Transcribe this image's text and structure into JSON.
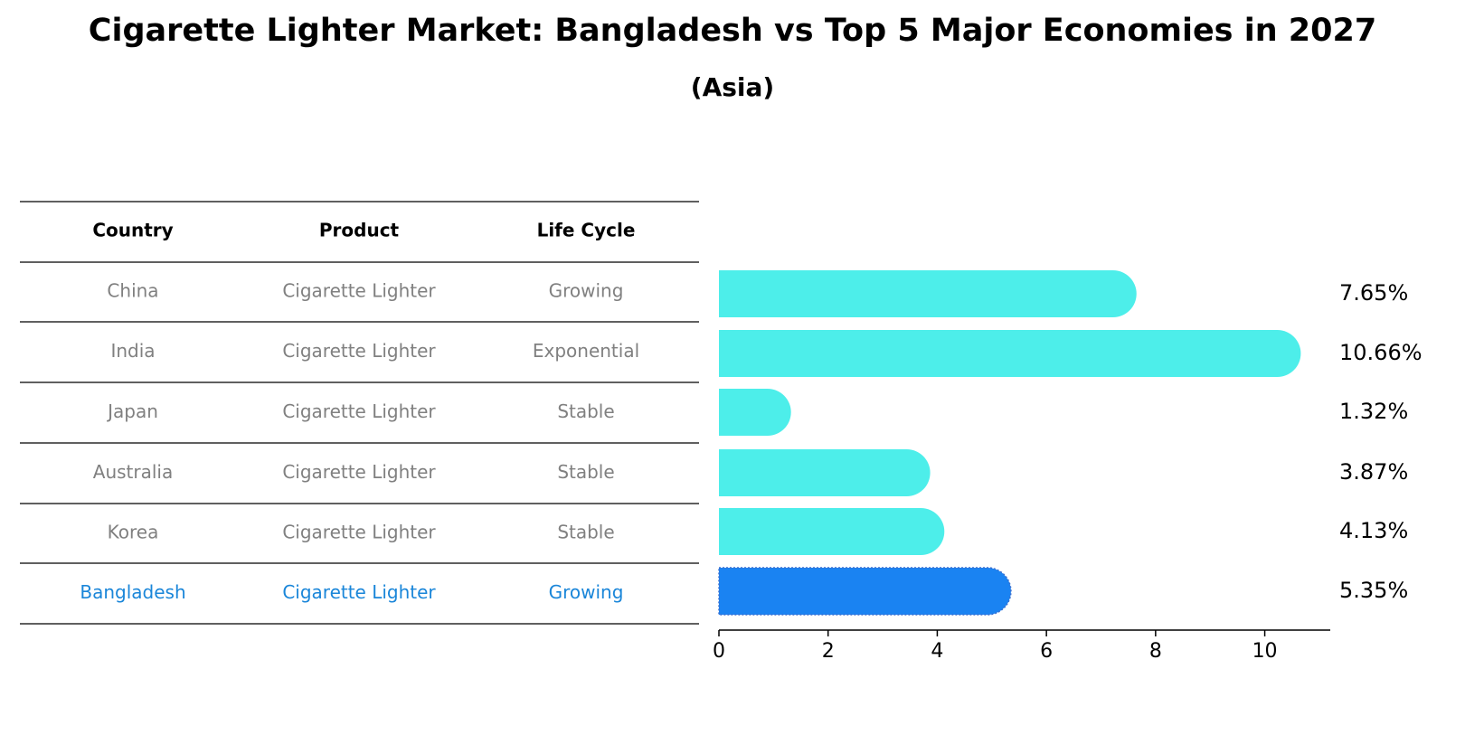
{
  "chart_data": {
    "type": "bar",
    "orientation": "horizontal",
    "title": "Cigarette Lighter Market: Bangladesh vs Top 5 Major Economies in 2027",
    "subtitle": "(Asia)",
    "table": {
      "headers": [
        "Country",
        "Product",
        "Life Cycle"
      ],
      "rows": [
        [
          "China",
          "Cigarette Lighter",
          "Growing"
        ],
        [
          "India",
          "Cigarette Lighter",
          "Exponential"
        ],
        [
          "Japan",
          "Cigarette Lighter",
          "Stable"
        ],
        [
          "Australia",
          "Cigarette Lighter",
          "Stable"
        ],
        [
          "Korea",
          "Cigarette Lighter",
          "Stable"
        ],
        [
          "Bangladesh",
          "Cigarette Lighter",
          "Growing"
        ]
      ],
      "highlight_row": 5
    },
    "categories": [
      "China",
      "India",
      "Japan",
      "Australia",
      "Korea",
      "Bangladesh"
    ],
    "values": [
      7.65,
      10.66,
      1.32,
      3.87,
      4.13,
      5.35
    ],
    "value_labels": [
      "7.65%",
      "10.66%",
      "1.32%",
      "3.87%",
      "4.13%",
      "5.35%"
    ],
    "xlim": [
      0,
      11.2
    ],
    "xticks": [
      0,
      2,
      4,
      6,
      8,
      10
    ],
    "xtick_labels": [
      "0",
      "2",
      "4",
      "6",
      "8",
      "10"
    ],
    "colors": {
      "bar": "#4deeea",
      "highlight": "#1a83f2",
      "highlight_text": "#1a86d9",
      "text_muted": "#808080",
      "rule": "#000000"
    }
  }
}
